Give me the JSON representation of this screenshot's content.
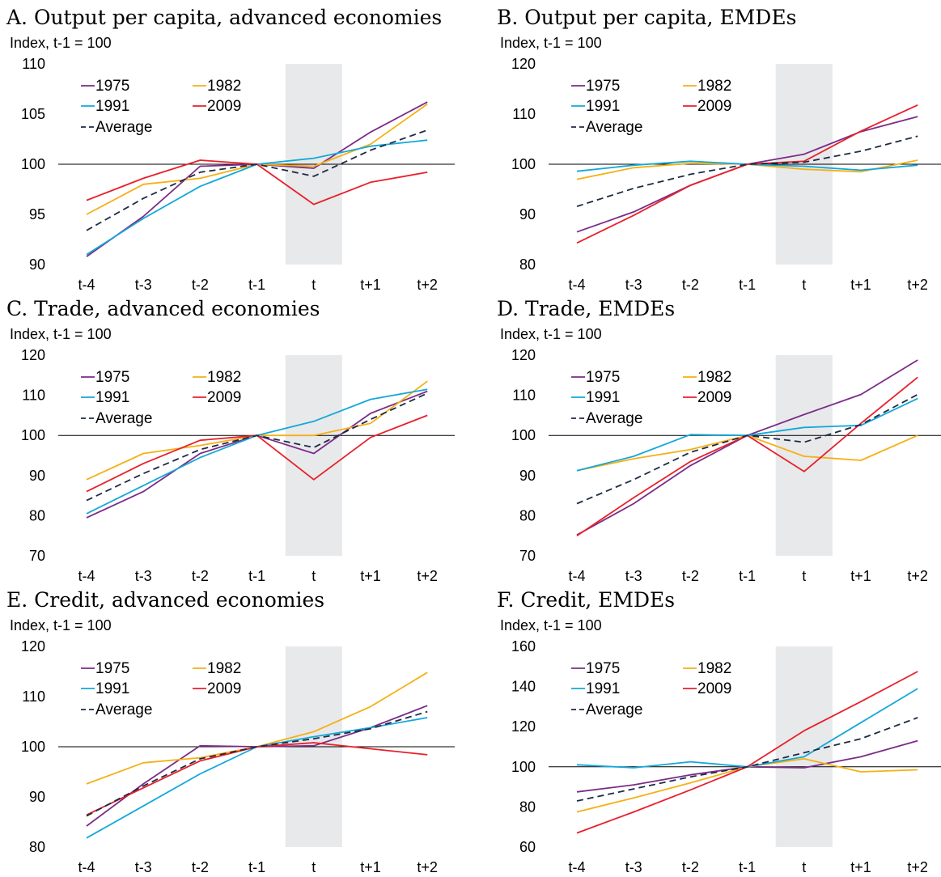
{
  "colors": {
    "1975": "#7B2C87",
    "1982": "#F5B014",
    "1991": "#13A8DA",
    "2009": "#E8202A",
    "Average": "#1E2A44",
    "shade": "#E8E9EB"
  },
  "legend_labels": [
    "1975",
    "1982",
    "1991",
    "2009",
    "Average"
  ],
  "chart_data": [
    {
      "type": "line",
      "title": "A. Output per capita, advanced economies",
      "ylabel": "Index, t-1 = 100",
      "categories": [
        "t-4",
        "t-3",
        "t-2",
        "t-1",
        "t",
        "t+1",
        "t+2"
      ],
      "ylim": [
        90,
        110
      ],
      "yticks": [
        90,
        95,
        100,
        105,
        110
      ],
      "shaded_category": "t",
      "reference_line": 100,
      "series": [
        {
          "name": "1975",
          "values": [
            90.8,
            94.8,
            99.8,
            100,
            99.6,
            103.2,
            106.2
          ]
        },
        {
          "name": "1982",
          "values": [
            95.0,
            98.0,
            98.6,
            100,
            99.8,
            102.0,
            106.0
          ]
        },
        {
          "name": "1991",
          "values": [
            91.0,
            94.6,
            97.8,
            100,
            100.6,
            101.8,
            102.4
          ]
        },
        {
          "name": "2009",
          "values": [
            96.4,
            98.6,
            100.4,
            100,
            96.0,
            98.2,
            99.2
          ]
        },
        {
          "name": "Average",
          "values": [
            93.4,
            96.6,
            99.2,
            100,
            98.8,
            101.4,
            103.4
          ]
        }
      ]
    },
    {
      "type": "line",
      "title": "B. Output per capita, EMDEs",
      "ylabel": "Index, t-1 = 100",
      "categories": [
        "t-4",
        "t-3",
        "t-2",
        "t-1",
        "t",
        "t+1",
        "t+2"
      ],
      "ylim": [
        80,
        120
      ],
      "yticks": [
        80,
        90,
        100,
        110,
        120
      ],
      "shaded_category": "t",
      "reference_line": 100,
      "series": [
        {
          "name": "1975",
          "values": [
            86.5,
            90.5,
            95.8,
            100,
            102.0,
            106.5,
            109.5
          ]
        },
        {
          "name": "1982",
          "values": [
            97.0,
            99.3,
            100.2,
            100,
            99.0,
            98.5,
            100.8
          ]
        },
        {
          "name": "1991",
          "values": [
            98.6,
            99.8,
            100.6,
            100,
            99.6,
            98.8,
            99.8
          ]
        },
        {
          "name": "2009",
          "values": [
            84.3,
            89.8,
            95.8,
            100,
            100.6,
            106.6,
            111.8
          ]
        },
        {
          "name": "Average",
          "values": [
            91.6,
            95.2,
            98.0,
            100,
            100.4,
            102.6,
            105.6
          ]
        }
      ]
    },
    {
      "type": "line",
      "title": "C. Trade, advanced economies",
      "ylabel": "Index, t-1 = 100",
      "categories": [
        "t-4",
        "t-3",
        "t-2",
        "t-1",
        "t",
        "t+1",
        "t+2"
      ],
      "ylim": [
        70,
        120
      ],
      "yticks": [
        70,
        80,
        90,
        100,
        110,
        120
      ],
      "shaded_category": "t",
      "reference_line": 100,
      "series": [
        {
          "name": "1975",
          "values": [
            79.5,
            86.0,
            95.5,
            100,
            95.5,
            105.5,
            111.0
          ]
        },
        {
          "name": "1982",
          "values": [
            89.0,
            95.5,
            97.5,
            100,
            100.0,
            103.0,
            113.5
          ]
        },
        {
          "name": "1991",
          "values": [
            80.5,
            87.5,
            94.5,
            100,
            103.5,
            109.0,
            111.5
          ]
        },
        {
          "name": "2009",
          "values": [
            86.0,
            93.0,
            98.8,
            100,
            89.0,
            99.5,
            105.0
          ]
        },
        {
          "name": "Average",
          "values": [
            83.8,
            90.5,
            96.5,
            100,
            97.0,
            104.0,
            110.5
          ]
        }
      ]
    },
    {
      "type": "line",
      "title": "D. Trade, EMDEs",
      "ylabel": "Index, t-1 = 100",
      "categories": [
        "t-4",
        "t-3",
        "t-2",
        "t-1",
        "t",
        "t+1",
        "t+2"
      ],
      "ylim": [
        70,
        120
      ],
      "yticks": [
        70,
        80,
        90,
        100,
        110,
        120
      ],
      "shaded_category": "t",
      "reference_line": 100,
      "series": [
        {
          "name": "1975",
          "values": [
            75.2,
            83.0,
            92.5,
            100,
            105.2,
            110.2,
            118.8
          ]
        },
        {
          "name": "1982",
          "values": [
            91.2,
            94.2,
            96.5,
            100,
            94.8,
            93.8,
            100.0
          ]
        },
        {
          "name": "1991",
          "values": [
            91.2,
            94.8,
            100.2,
            100,
            102.0,
            102.5,
            109.2
          ]
        },
        {
          "name": "2009",
          "values": [
            75.0,
            84.5,
            93.5,
            100,
            91.0,
            103.0,
            114.5
          ]
        },
        {
          "name": "Average",
          "values": [
            83.0,
            89.0,
            95.8,
            100,
            98.3,
            102.7,
            110.2
          ]
        }
      ]
    },
    {
      "type": "line",
      "title": "E. Credit, advanced economies",
      "ylabel": "Index, t-1 = 100",
      "categories": [
        "t-4",
        "t-3",
        "t-2",
        "t-1",
        "t",
        "t+1",
        "t+2"
      ],
      "ylim": [
        80,
        120
      ],
      "yticks": [
        80,
        90,
        100,
        110,
        120
      ],
      "shaded_category": "t",
      "reference_line": 100,
      "series": [
        {
          "name": "1975",
          "values": [
            84.2,
            92.6,
            100.2,
            100,
            100.2,
            103.8,
            108.2
          ]
        },
        {
          "name": "1982",
          "values": [
            92.6,
            96.8,
            97.8,
            100,
            103.0,
            108.0,
            114.8
          ]
        },
        {
          "name": "1991",
          "values": [
            81.8,
            88.2,
            94.6,
            100,
            102.0,
            103.8,
            105.8
          ]
        },
        {
          "name": "2009",
          "values": [
            86.4,
            91.8,
            97.2,
            100,
            100.8,
            99.6,
            98.4
          ]
        },
        {
          "name": "Average",
          "values": [
            86.2,
            92.2,
            97.6,
            100,
            101.6,
            103.6,
            107.0
          ]
        }
      ]
    },
    {
      "type": "line",
      "title": "F. Credit, EMDEs",
      "ylabel": "Index, t-1 = 100",
      "categories": [
        "t-4",
        "t-3",
        "t-2",
        "t-1",
        "t",
        "t+1",
        "t+2"
      ],
      "ylim": [
        60,
        160
      ],
      "yticks": [
        60,
        80,
        100,
        120,
        140,
        160
      ],
      "shaded_category": "t",
      "reference_line": 100,
      "series": [
        {
          "name": "1975",
          "values": [
            87.5,
            91.0,
            96.0,
            100,
            99.5,
            105.0,
            113.0
          ]
        },
        {
          "name": "1982",
          "values": [
            77.5,
            84.5,
            92.0,
            100,
            104.0,
            97.5,
            98.5
          ]
        },
        {
          "name": "1991",
          "values": [
            101.0,
            99.5,
            102.5,
            100,
            105.0,
            122.0,
            139.0
          ]
        },
        {
          "name": "2009",
          "values": [
            67.0,
            77.5,
            88.5,
            100,
            118.0,
            132.5,
            147.5
          ]
        },
        {
          "name": "Average",
          "values": [
            83.0,
            89.0,
            95.0,
            100,
            107.0,
            114.0,
            124.5
          ]
        }
      ]
    }
  ]
}
